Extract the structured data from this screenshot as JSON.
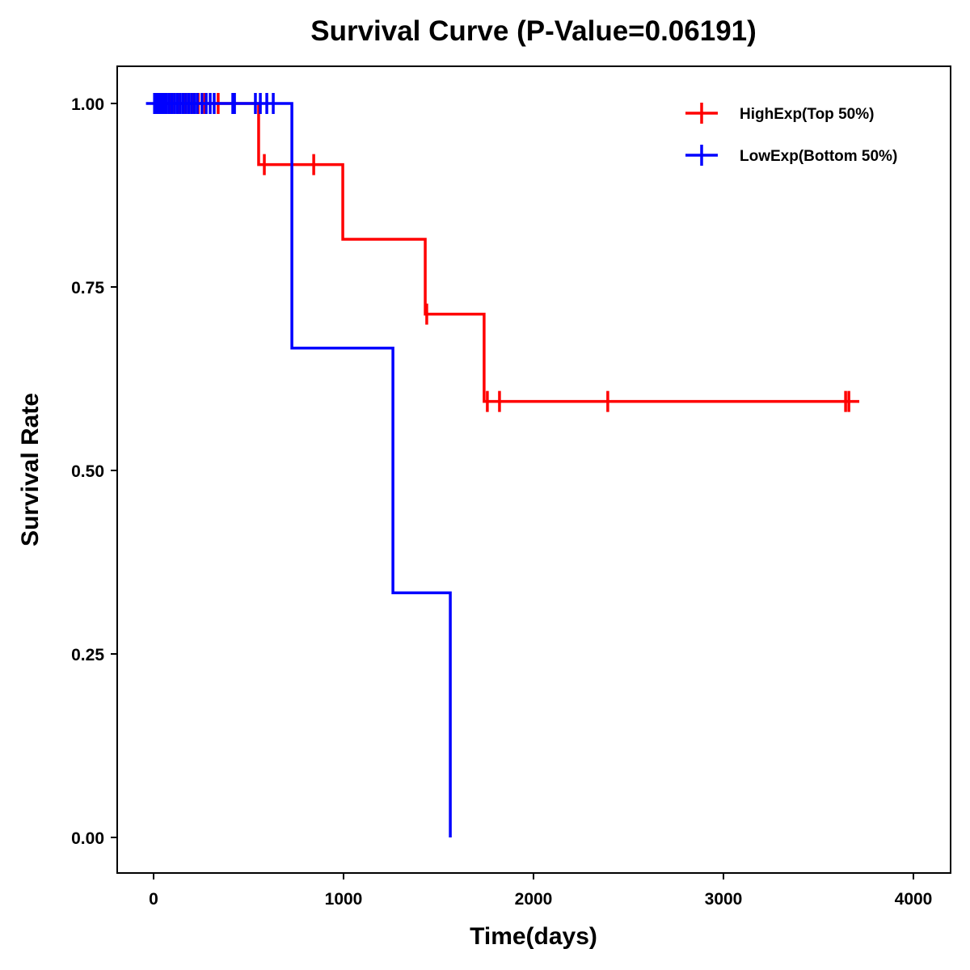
{
  "chart_data": {
    "type": "line",
    "subtype": "kaplan-meier-step",
    "title": "Survival Curve (P-Value=0.06191)",
    "xlabel": "Time(days)",
    "ylabel": "Survival Rate",
    "xlim": [
      -200,
      4200
    ],
    "ylim": [
      -0.05,
      1.05
    ],
    "xticks": [
      0,
      1000,
      2000,
      3000,
      4000
    ],
    "xtick_labels": [
      "0",
      "1000",
      "2000",
      "3000",
      "4000"
    ],
    "yticks": [
      0,
      0.25,
      0.5,
      0.75,
      1.0
    ],
    "ytick_labels": [
      "0.00",
      "0.25",
      "0.50",
      "0.75",
      "1.00"
    ],
    "grid": false,
    "legend_position": "top-right",
    "series": [
      {
        "name": "HighExp(Top 50%)",
        "color": "#ff0000",
        "steps": [
          {
            "time": 0,
            "survival": 1.0
          },
          {
            "time": 553,
            "survival": 0.9167
          },
          {
            "time": 996,
            "survival": 0.815
          },
          {
            "time": 1430,
            "survival": 0.713
          },
          {
            "time": 1740,
            "survival": 0.594
          }
        ],
        "end_time": 3715,
        "censored_times": [
          20,
          40,
          60,
          85,
          110,
          135,
          160,
          185,
          210,
          235,
          255,
          270,
          340,
          583,
          843,
          1438,
          1757,
          1821,
          2391,
          3643,
          3660
        ]
      },
      {
        "name": "LowExp(Bottom 50%)",
        "color": "#0000ff",
        "steps": [
          {
            "time": -40,
            "survival": 1.0
          },
          {
            "time": 728,
            "survival": 0.6667
          },
          {
            "time": 1260,
            "survival": 0.3333
          },
          {
            "time": 1562,
            "survival": 0.0
          }
        ],
        "end_time": 1562,
        "censored_times": [
          5,
          15,
          25,
          35,
          45,
          55,
          65,
          80,
          95,
          110,
          125,
          140,
          155,
          170,
          185,
          200,
          215,
          230,
          255,
          277,
          298,
          319,
          417,
          426,
          536,
          562,
          596,
          630
        ]
      }
    ]
  }
}
